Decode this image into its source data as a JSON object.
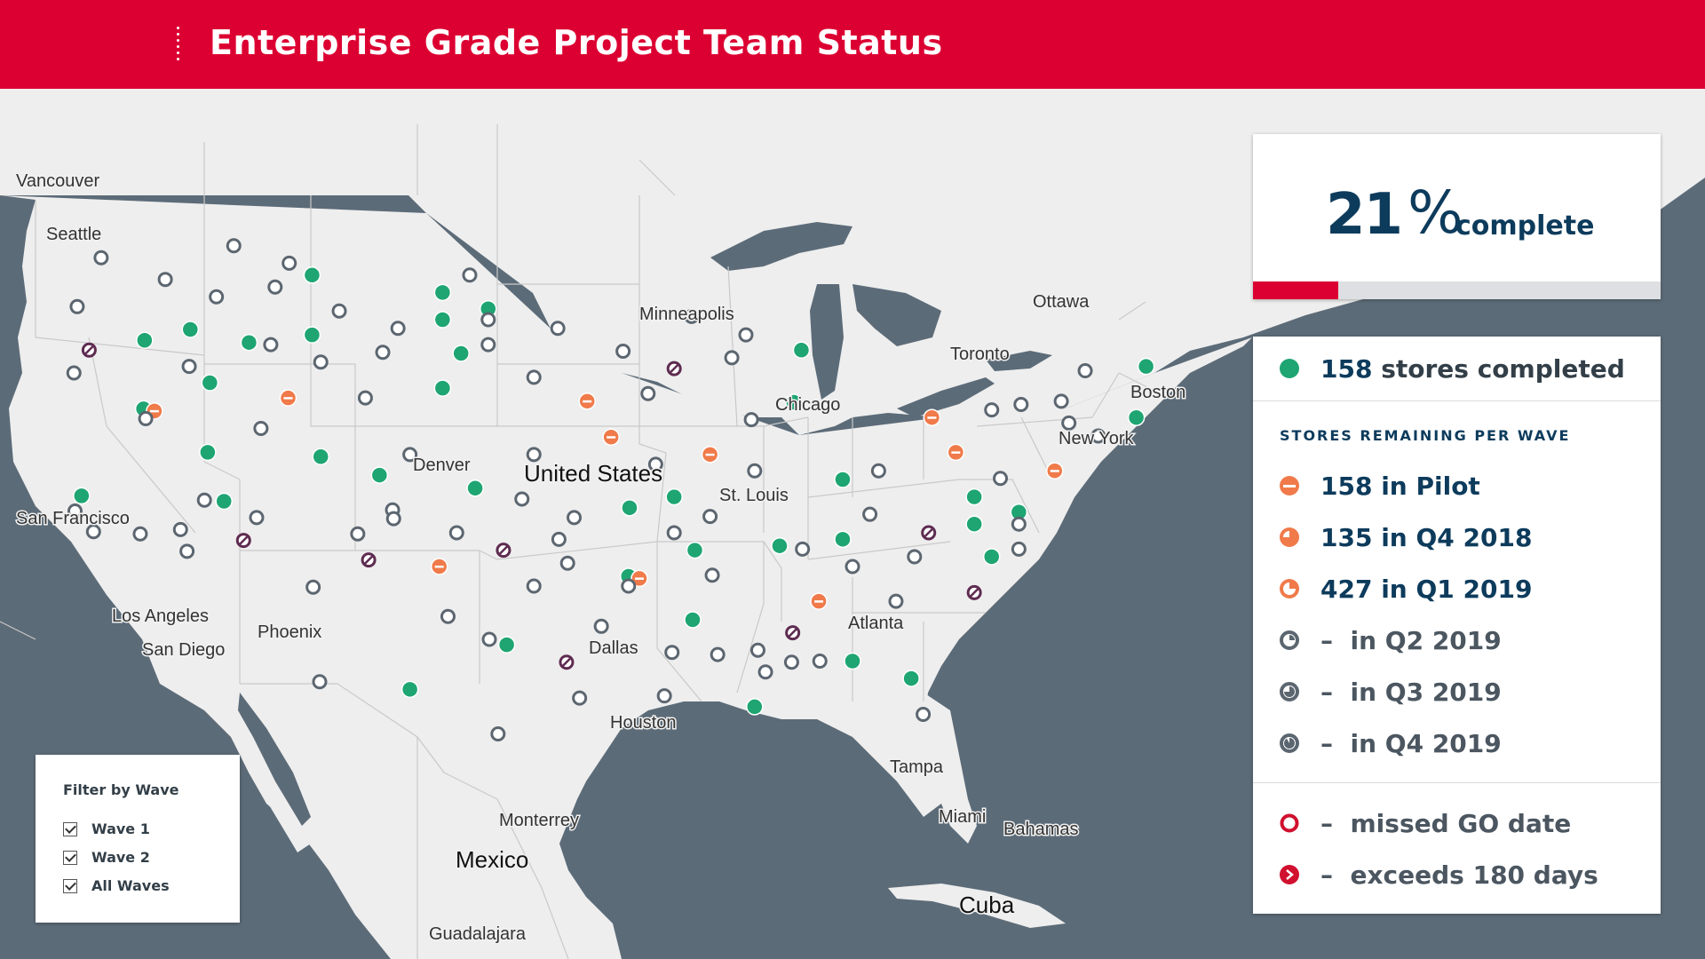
{
  "header": {
    "title": "Enterprise Grade Project Team Status"
  },
  "progress": {
    "percent": 21,
    "percent_sign": "%",
    "label": "complete"
  },
  "summary": {
    "completed_count": "158",
    "completed_label": "stores completed"
  },
  "waves": {
    "section_title": "STORES REMAINING PER WAVE",
    "items": [
      {
        "count": "158",
        "label": "in Pilot"
      },
      {
        "count": "135",
        "label": "in Q4 2018"
      },
      {
        "count": "427",
        "label": "in Q1 2019"
      },
      {
        "count": "–",
        "label": "in Q2 2019"
      },
      {
        "count": "–",
        "label": "in Q3 2019"
      },
      {
        "count": "–",
        "label": "in Q4 2019"
      }
    ]
  },
  "alerts": [
    {
      "count": "–",
      "label": "missed GO date"
    },
    {
      "count": "–",
      "label": "exceeds 180 days"
    }
  ],
  "filter": {
    "title": "Filter by Wave",
    "options": [
      {
        "label": "Wave 1",
        "checked": true
      },
      {
        "label": "Wave 2",
        "checked": true
      },
      {
        "label": "All Waves",
        "checked": true
      }
    ]
  },
  "map_labels": {
    "vancouver": "Vancouver",
    "seattle": "Seattle",
    "san_francisco": "San Francisco",
    "los_angeles": "Los Angeles",
    "san_diego": "San Diego",
    "phoenix": "Phoenix",
    "denver": "Denver",
    "united_states": "United States",
    "minneapolis": "Minneapolis",
    "chicago": "Chicago",
    "st_louis": "St. Louis",
    "dallas": "Dallas",
    "houston": "Houston",
    "atlanta": "Atlanta",
    "toronto": "Toronto",
    "ottawa": "Ottawa",
    "boston": "Boston",
    "new_york": "New York",
    "tampa": "Tampa",
    "miami": "Miami",
    "bahamas": "Bahamas",
    "cuba": "Cuba",
    "monterrey": "Monterrey",
    "mexico": "Mexico",
    "guadalajara": "Guadalajara"
  },
  "colors": {
    "brand_red": "#dc0032",
    "navy": "#0d3b5c",
    "completed": "#1ea572",
    "pilot": "#f07a4a",
    "pending": "#5c6670",
    "missed": "#d0102e",
    "exceeds": "#5e2b50",
    "water": "#5c6b78",
    "land": "#eeeeee"
  },
  "stores": {
    "completed": [
      [
        287,
        253
      ],
      [
        407,
        269
      ],
      [
        449,
        284
      ],
      [
        407,
        294
      ],
      [
        175,
        303
      ],
      [
        133,
        313
      ],
      [
        229,
        315
      ],
      [
        287,
        308
      ],
      [
        424,
        325
      ],
      [
        737,
        322
      ],
      [
        193,
        352
      ],
      [
        407,
        357
      ],
      [
        1054,
        337
      ],
      [
        730,
        370
      ],
      [
        1045,
        384
      ],
      [
        132,
        376
      ],
      [
        191,
        416
      ],
      [
        295,
        420
      ],
      [
        349,
        437
      ],
      [
        775,
        441
      ],
      [
        437,
        449
      ],
      [
        75,
        456
      ],
      [
        206,
        461
      ],
      [
        620,
        457
      ],
      [
        579,
        467
      ],
      [
        896,
        457
      ],
      [
        937,
        471
      ],
      [
        896,
        482
      ],
      [
        775,
        496
      ],
      [
        639,
        506
      ],
      [
        717,
        502
      ],
      [
        912,
        512
      ],
      [
        578,
        530
      ],
      [
        637,
        570
      ],
      [
        466,
        593
      ],
      [
        784,
        608
      ],
      [
        838,
        624
      ],
      [
        377,
        634
      ],
      [
        694,
        650
      ]
    ],
    "pilot": [
      [
        142,
        378
      ],
      [
        265,
        366
      ],
      [
        540,
        369
      ],
      [
        562,
        402
      ],
      [
        653,
        418
      ],
      [
        857,
        384
      ],
      [
        879,
        416
      ],
      [
        970,
        433
      ],
      [
        404,
        521
      ],
      [
        588,
        532
      ],
      [
        753,
        553
      ]
    ],
    "pending": [
      [
        93,
        237
      ],
      [
        215,
        226
      ],
      [
        266,
        242
      ],
      [
        152,
        257
      ],
      [
        253,
        264
      ],
      [
        432,
        253
      ],
      [
        71,
        282
      ],
      [
        199,
        273
      ],
      [
        312,
        286
      ],
      [
        449,
        294
      ],
      [
        513,
        302
      ],
      [
        636,
        291
      ],
      [
        686,
        308
      ],
      [
        366,
        302
      ],
      [
        449,
        317
      ],
      [
        249,
        317
      ],
      [
        573,
        323
      ],
      [
        673,
        329
      ],
      [
        352,
        324
      ],
      [
        295,
        333
      ],
      [
        68,
        343
      ],
      [
        174,
        337
      ],
      [
        491,
        347
      ],
      [
        596,
        362
      ],
      [
        998,
        341
      ],
      [
        336,
        366
      ],
      [
        912,
        377
      ],
      [
        939,
        372
      ],
      [
        976,
        369
      ],
      [
        983,
        389
      ],
      [
        1010,
        401
      ],
      [
        691,
        386
      ],
      [
        134,
        385
      ],
      [
        240,
        394
      ],
      [
        377,
        418
      ],
      [
        491,
        418
      ],
      [
        603,
        427
      ],
      [
        694,
        433
      ],
      [
        808,
        433
      ],
      [
        920,
        440
      ],
      [
        361,
        469
      ],
      [
        362,
        477
      ],
      [
        188,
        460
      ],
      [
        480,
        459
      ],
      [
        528,
        476
      ],
      [
        653,
        475
      ],
      [
        800,
        473
      ],
      [
        69,
        470
      ],
      [
        86,
        489
      ],
      [
        166,
        487
      ],
      [
        129,
        491
      ],
      [
        236,
        476
      ],
      [
        329,
        491
      ],
      [
        420,
        490
      ],
      [
        514,
        496
      ],
      [
        620,
        490
      ],
      [
        738,
        505
      ],
      [
        937,
        482
      ],
      [
        937,
        505
      ],
      [
        172,
        507
      ],
      [
        522,
        518
      ],
      [
        655,
        529
      ],
      [
        784,
        521
      ],
      [
        841,
        512
      ],
      [
        578,
        539
      ],
      [
        491,
        539
      ],
      [
        288,
        540
      ],
      [
        824,
        553
      ],
      [
        412,
        567
      ],
      [
        553,
        576
      ],
      [
        450,
        588
      ],
      [
        618,
        600
      ],
      [
        660,
        602
      ],
      [
        697,
        598
      ],
      [
        754,
        608
      ],
      [
        704,
        618
      ],
      [
        728,
        609
      ],
      [
        294,
        627
      ],
      [
        533,
        642
      ],
      [
        611,
        640
      ],
      [
        849,
        657
      ],
      [
        458,
        675
      ]
    ],
    "exceeds": [
      [
        82,
        322
      ],
      [
        620,
        339
      ],
      [
        224,
        497
      ],
      [
        339,
        515
      ],
      [
        463,
        506
      ],
      [
        854,
        490
      ],
      [
        896,
        545
      ],
      [
        729,
        582
      ],
      [
        521,
        609
      ]
    ]
  }
}
